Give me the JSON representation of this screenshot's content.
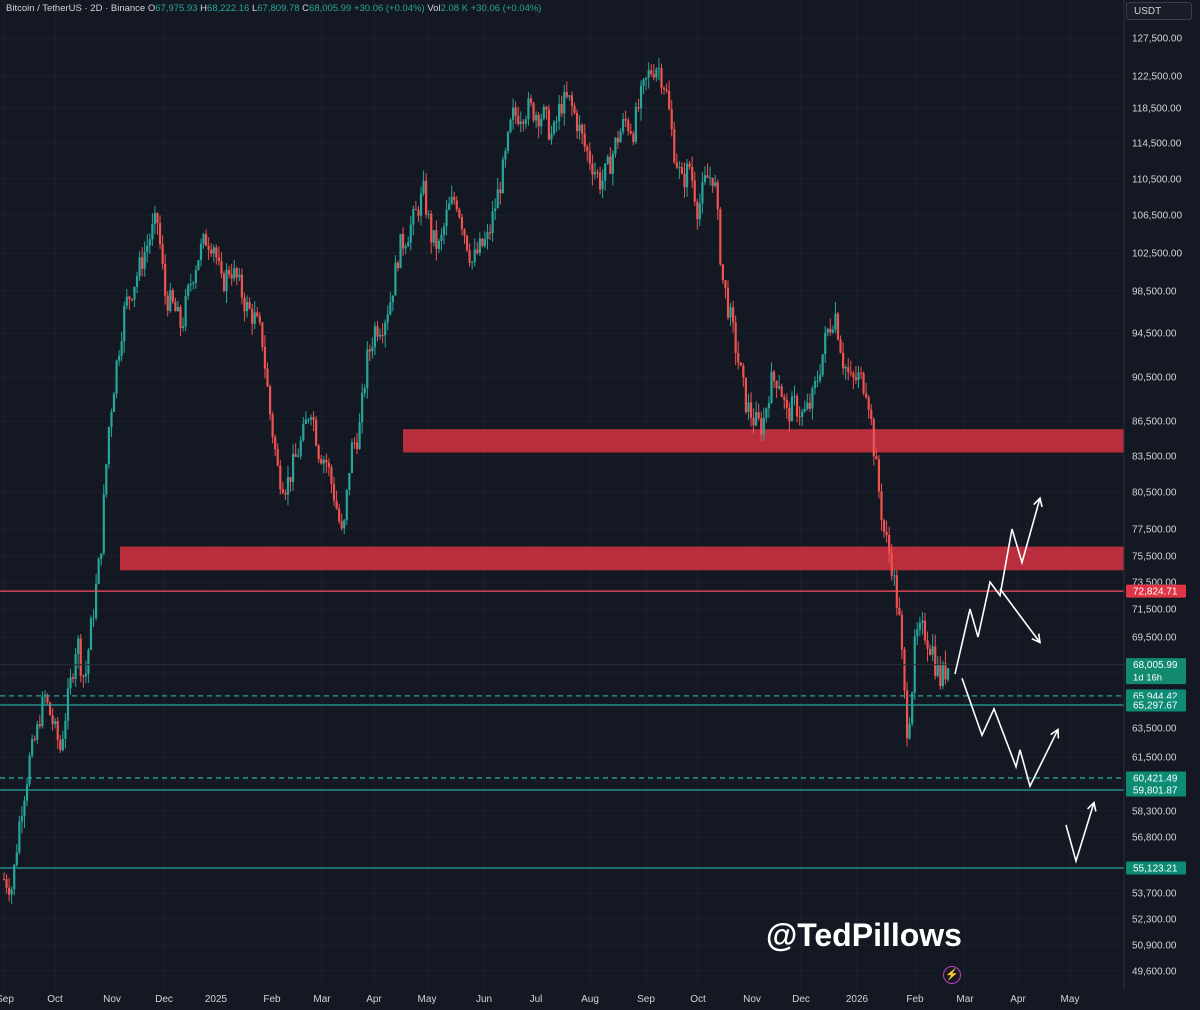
{
  "header": {
    "symbol": "Bitcoin / TetherUS · 2D · Binance",
    "o_label": "O",
    "o": "67,975.93",
    "h_label": "H",
    "h": "68,222.16",
    "l_label": "L",
    "l": "67,809.78",
    "c_label": "C",
    "c": "68,005.99",
    "change": "+30.06 (+0.04%)",
    "vol_label": "Vol",
    "vol": "2.08 K",
    "vol_change": "+30.06 (+0.04%)"
  },
  "currency_label": "USDT",
  "watermark": "@TedPillows",
  "colors": {
    "background": "#141822",
    "up": "#26a69a",
    "down": "#ef5350",
    "zone": "#c83140",
    "resistance_line": "#ff4d5a",
    "support_line": "#26a69a",
    "axis_text": "#d1d4dc"
  },
  "chart_data": {
    "type": "candlestick",
    "title": "Bitcoin / TetherUS · 2D · Binance",
    "y_axis_ticks": [
      "127,500.00",
      "122,500.00",
      "118,500.00",
      "114,500.00",
      "110,500.00",
      "106,500.00",
      "102,500.00",
      "98,500.00",
      "94,500.00",
      "90,500.00",
      "86,500.00",
      "83,500.00",
      "80,500.00",
      "77,500.00",
      "75,500.00",
      "73,500.00",
      "71,500.00",
      "69,500.00",
      "67,500.00",
      "63,500.00",
      "61,500.00",
      "58,300.00",
      "56,800.00",
      "53,700.00",
      "52,300.00",
      "50,900.00",
      "49,600.00"
    ],
    "x_axis_ticks": [
      "Sep",
      "Oct",
      "Nov",
      "Dec",
      "2025",
      "Feb",
      "Mar",
      "Apr",
      "May",
      "Jun",
      "Jul",
      "Aug",
      "Sep",
      "Oct",
      "Nov",
      "Dec",
      "2026",
      "Feb",
      "Mar",
      "Apr",
      "May"
    ],
    "price_levels": [
      {
        "label": "72,824.71",
        "value": 72824.71,
        "style": "solid",
        "color": "resistance"
      },
      {
        "label": "68,005.99",
        "value": 68005.99,
        "style": "current",
        "sub": "1d 16h"
      },
      {
        "label": "65,944.42",
        "value": 65944.42,
        "style": "dashed",
        "color": "support"
      },
      {
        "label": "65,297.67",
        "value": 65297.67,
        "style": "solid",
        "color": "support"
      },
      {
        "label": "60,421.49",
        "value": 60421.49,
        "style": "dashed",
        "color": "support"
      },
      {
        "label": "59,801.87",
        "value": 59801.87,
        "style": "solid",
        "color": "support"
      },
      {
        "label": "55,123.21",
        "value": 55123.21,
        "style": "solid",
        "color": "support"
      }
    ],
    "zones": [
      {
        "from": 83800,
        "to": 85800
      },
      {
        "from": 74400,
        "to": 76200
      }
    ],
    "path_prices": [
      54500,
      54000,
      58000,
      61000,
      63000,
      66000,
      64000,
      62000,
      66000,
      69500,
      67000,
      71000,
      76000,
      86000,
      92000,
      97000,
      99000,
      101500,
      104000,
      106000,
      98000,
      97000,
      95000,
      99000,
      102000,
      104000,
      103500,
      99000,
      101000,
      99500,
      97000,
      96000,
      94000,
      87000,
      82000,
      81000,
      83000,
      85000,
      88000,
      84000,
      83000,
      80000,
      76500,
      84000,
      85500,
      92000,
      95000,
      95500,
      98000,
      103000,
      104500,
      106500,
      109000,
      104000,
      103000,
      107000,
      108500,
      105000,
      101500,
      103000,
      104000,
      108000,
      112000,
      117500,
      118000,
      118500,
      118000,
      117500,
      115000,
      119000,
      119500,
      117000,
      114000,
      112000,
      110000,
      112000,
      115000,
      117000,
      116000,
      120000,
      123000,
      124000,
      121000,
      114000,
      110000,
      112000,
      107000,
      110500,
      111000,
      100000,
      96000,
      92000,
      88000,
      86500,
      86000,
      90000,
      90500,
      87000,
      88000,
      87000,
      88000,
      91000,
      94500,
      96500,
      92000,
      90000,
      90500,
      89500,
      83000,
      77500,
      75000,
      70500,
      63000,
      69500,
      70000,
      69000,
      67000,
      68006
    ],
    "annotations": [
      {
        "type": "arrow_path",
        "scenario": "bullish",
        "prices": [
          67500,
          71500,
          69500,
          73500,
          72500,
          77500,
          75000,
          80000
        ]
      },
      {
        "type": "arrow_path",
        "scenario": "rejection",
        "prices": [
          73000,
          69200
        ]
      },
      {
        "type": "arrow_path",
        "scenario": "bearish",
        "prices": [
          67200,
          63000,
          65000,
          61000,
          62000,
          60000,
          63400
        ]
      },
      {
        "type": "arrow_path",
        "scenario": "deep",
        "prices": [
          57500,
          55500,
          58900
        ]
      }
    ]
  }
}
